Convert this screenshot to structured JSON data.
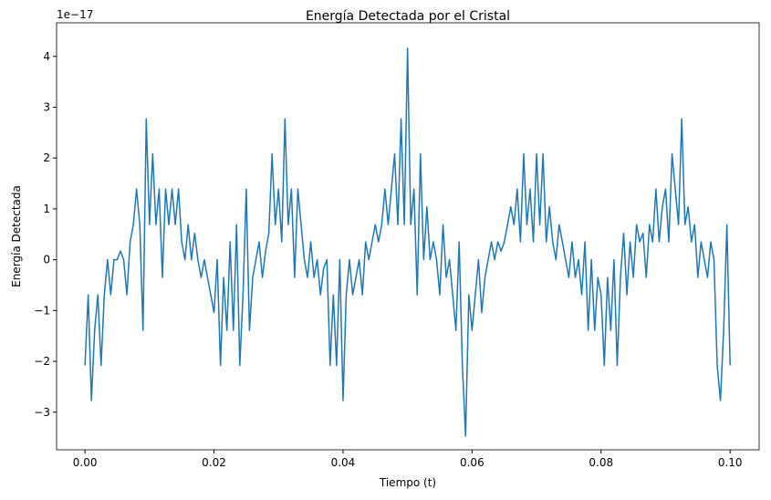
{
  "chart_data": {
    "type": "line",
    "title": "Energía Detectada por el Cristal",
    "x_label": "Tiempo (t)",
    "y_label": "Energía Detectada",
    "y_offset_label": "1e−17",
    "xlim": [
      -0.0044,
      0.1045
    ],
    "ylim": [
      -3.74,
      4.66
    ],
    "xticks": [
      {
        "value": 0,
        "label": "0.00"
      },
      {
        "value": 0.02,
        "label": "0.02"
      },
      {
        "value": 0.04,
        "label": "0.04"
      },
      {
        "value": 0.06,
        "label": "0.06"
      },
      {
        "value": 0.08,
        "label": "0.08"
      },
      {
        "value": 0.1,
        "label": "0.10"
      }
    ],
    "yticks": [
      {
        "value": -3,
        "label": "−3"
      },
      {
        "value": -2,
        "label": "−2"
      },
      {
        "value": -1,
        "label": "−1"
      },
      0,
      1,
      2,
      3,
      4
    ],
    "grid": false,
    "x": [
      0,
      0.0005,
      0.001,
      0.0015,
      0.002,
      0.0025,
      0.003,
      0.0035,
      0.004,
      0.0045,
      0.005,
      0.0055,
      0.006,
      0.0065,
      0.007,
      0.0075,
      0.008,
      0.0085,
      0.009,
      0.0095,
      0.01,
      0.0105,
      0.011,
      0.0115,
      0.012,
      0.0125,
      0.013,
      0.0135,
      0.014,
      0.0145,
      0.015,
      0.0155,
      0.016,
      0.0165,
      0.017,
      0.0175,
      0.018,
      0.0185,
      0.019,
      0.0195,
      0.02,
      0.0205,
      0.021,
      0.0215,
      0.022,
      0.0225,
      0.023,
      0.0235,
      0.024,
      0.0245,
      0.025,
      0.0255,
      0.026,
      0.0265,
      0.027,
      0.0275,
      0.028,
      0.0285,
      0.029,
      0.0295,
      0.03,
      0.0305,
      0.031,
      0.0315,
      0.032,
      0.0325,
      0.033,
      0.0335,
      0.034,
      0.0345,
      0.035,
      0.0355,
      0.036,
      0.0365,
      0.037,
      0.0375,
      0.038,
      0.0385,
      0.039,
      0.0395,
      0.04,
      0.0405,
      0.041,
      0.0415,
      0.042,
      0.0425,
      0.043,
      0.0435,
      0.044,
      0.0445,
      0.045,
      0.0455,
      0.046,
      0.0465,
      0.047,
      0.0475,
      0.048,
      0.0485,
      0.049,
      0.0495,
      0.05,
      0.0505,
      0.051,
      0.0515,
      0.052,
      0.0525,
      0.053,
      0.0535,
      0.054,
      0.0545,
      0.055,
      0.0555,
      0.056,
      0.0565,
      0.057,
      0.0575,
      0.058,
      0.0585,
      0.059,
      0.0595,
      0.06,
      0.0605,
      0.061,
      0.0615,
      0.062,
      0.0625,
      0.063,
      0.0635,
      0.064,
      0.0645,
      0.065,
      0.0655,
      0.066,
      0.0665,
      0.067,
      0.0675,
      0.068,
      0.0685,
      0.069,
      0.0695,
      0.07,
      0.0705,
      0.071,
      0.0715,
      0.072,
      0.0725,
      0.073,
      0.0735,
      0.074,
      0.0745,
      0.075,
      0.0755,
      0.076,
      0.0765,
      0.077,
      0.0775,
      0.078,
      0.0785,
      0.079,
      0.0795,
      0.08,
      0.0805,
      0.081,
      0.0815,
      0.082,
      0.0825,
      0.083,
      0.0835,
      0.084,
      0.0845,
      0.085,
      0.0855,
      0.086,
      0.0865,
      0.087,
      0.0875,
      0.088,
      0.0885,
      0.089,
      0.0895,
      0.09,
      0.0905,
      0.091,
      0.0915,
      0.092,
      0.0925,
      0.093,
      0.0935,
      0.094,
      0.0945,
      0.095,
      0.0955,
      0.096,
      0.0965,
      0.097,
      0.0975,
      0.098,
      0.0985,
      0.099,
      0.0995,
      0.1
    ],
    "series": [
      {
        "color": "#1f77b4",
        "values": [
          -2.08,
          -0.69,
          -2.77,
          -1.39,
          -0.69,
          -2.08,
          -0.69,
          0,
          -0.69,
          0,
          0,
          0.17,
          0,
          -0.69,
          0.35,
          0.69,
          1.39,
          0.69,
          -1.39,
          2.77,
          0.69,
          2.08,
          0.69,
          1.39,
          -0.35,
          1.39,
          0.69,
          1.39,
          0.69,
          1.39,
          0.35,
          0,
          0.69,
          0,
          0.52,
          0,
          -0.35,
          0,
          -0.35,
          -0.69,
          -1.04,
          0,
          -2.08,
          -0.35,
          -1.39,
          0.35,
          -1.39,
          0.69,
          -2.08,
          -0.69,
          1.39,
          -1.39,
          -0.35,
          0,
          0.35,
          -0.35,
          0.17,
          0.52,
          2.08,
          0.69,
          1.39,
          0.35,
          2.77,
          0.69,
          1.39,
          -0.35,
          1.39,
          0.69,
          0,
          -0.35,
          0.35,
          -0.35,
          0,
          -0.69,
          -0.17,
          0,
          -2.08,
          -0.69,
          -2.08,
          0,
          -2.77,
          -0.69,
          0,
          -0.69,
          -0.35,
          0,
          -0.69,
          0.35,
          0,
          0.35,
          0.69,
          0.35,
          0.69,
          1.39,
          0.69,
          1.39,
          2.08,
          0.69,
          2.77,
          0.69,
          4.16,
          0.69,
          1.39,
          -0.69,
          2.08,
          0,
          1.04,
          0,
          0.35,
          0,
          -0.69,
          0.69,
          -0.35,
          0,
          -0.69,
          -1.39,
          0.35,
          -2.08,
          -3.47,
          -0.69,
          -1.39,
          -0.69,
          0,
          -1.04,
          -0.35,
          0,
          0.35,
          0,
          0.35,
          0.17,
          0.35,
          0.69,
          1.04,
          0.69,
          1.39,
          0.35,
          2.08,
          0.69,
          1.39,
          0.35,
          2.08,
          0.69,
          2.08,
          0.35,
          1.04,
          0.35,
          0,
          0.69,
          0.35,
          0,
          -0.35,
          0.35,
          -0.35,
          0,
          -0.69,
          0.35,
          -1.39,
          0,
          -1.39,
          -0.35,
          -0.69,
          -2.08,
          -0.35,
          -1.39,
          0,
          -2.08,
          -0.35,
          0.52,
          -0.69,
          0.35,
          -0.35,
          0.69,
          0.35,
          0.52,
          -0.35,
          0.69,
          0.35,
          1.39,
          0.35,
          1.04,
          1.39,
          0.35,
          2.08,
          1.39,
          0.69,
          2.77,
          0.69,
          1.04,
          0.35,
          0.69,
          -0.35,
          0.35,
          0,
          -0.35,
          0.35,
          0,
          -2.08,
          -2.77,
          -1.39,
          0.69,
          -2.08
        ]
      }
    ]
  }
}
